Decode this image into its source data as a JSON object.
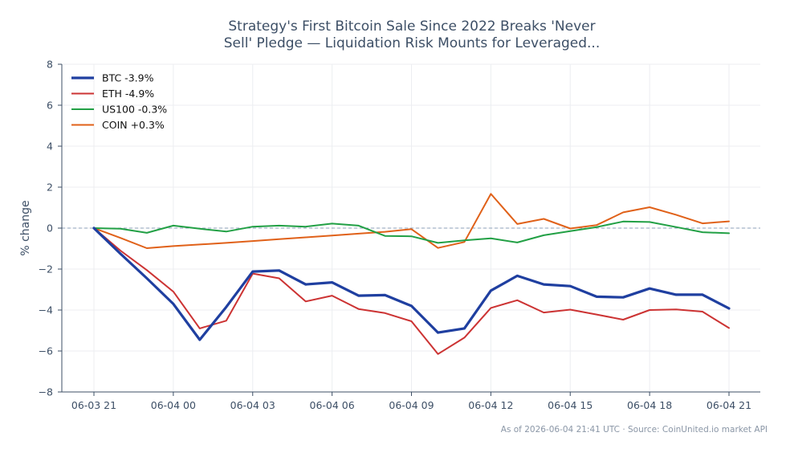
{
  "chart_data": {
    "type": "line",
    "title": "Strategy's First Bitcoin Sale Since 2022 Breaks 'Never Sell' Pledge — Liquidation Risk Mounts for Leveraged...",
    "title_lines": [
      "Strategy's First Bitcoin Sale Since 2022 Breaks 'Never",
      "Sell' Pledge — Liquidation Risk Mounts for Leveraged..."
    ],
    "xlabel": "",
    "ylabel": "% change",
    "ylim": [
      -8,
      8
    ],
    "yticks": [
      -8,
      -6,
      -4,
      -2,
      0,
      2,
      4,
      6,
      8
    ],
    "ytick_labels": [
      "−8",
      "−6",
      "−4",
      "−2",
      "0",
      "2",
      "4",
      "6",
      "8"
    ],
    "x": [
      "06-03 21",
      "06-03 22",
      "06-03 23",
      "06-04 00",
      "06-04 01",
      "06-04 02",
      "06-04 03",
      "06-04 04",
      "06-04 05",
      "06-04 06",
      "06-04 07",
      "06-04 08",
      "06-04 09",
      "06-04 10",
      "06-04 11",
      "06-04 12",
      "06-04 13",
      "06-04 14",
      "06-04 15",
      "06-04 16",
      "06-04 17",
      "06-04 18",
      "06-04 19",
      "06-04 20",
      "06-04 21"
    ],
    "xtick_labels": [
      "06-03 21",
      "06-04 00",
      "06-04 03",
      "06-04 06",
      "06-04 09",
      "06-04 12",
      "06-04 15",
      "06-04 18",
      "06-04 21"
    ],
    "grid": true,
    "legend_position": "top-left",
    "zero_line": true,
    "series": [
      {
        "name": "BTC -3.9%",
        "color": "#1f3fa0",
        "width": 3.2,
        "values": [
          0,
          -1.25,
          -2.45,
          -3.7,
          -5.45,
          -3.85,
          -2.12,
          -2.07,
          -2.75,
          -2.65,
          -3.3,
          -3.27,
          -3.8,
          -5.1,
          -4.9,
          -3.05,
          -2.33,
          -2.75,
          -2.83,
          -3.35,
          -3.38,
          -2.95,
          -3.25,
          -3.25,
          -3.92
        ]
      },
      {
        "name": "ETH -4.9%",
        "color": "#cc3333",
        "width": 2,
        "values": [
          0,
          -1.1,
          -2.05,
          -3.1,
          -4.9,
          -4.52,
          -2.22,
          -2.45,
          -3.58,
          -3.3,
          -3.95,
          -4.15,
          -4.55,
          -6.15,
          -5.35,
          -3.9,
          -3.52,
          -4.12,
          -3.98,
          -4.22,
          -4.47,
          -4.0,
          -3.97,
          -4.08,
          -4.88
        ]
      },
      {
        "name": "US100 -0.3%",
        "color": "#22a045",
        "width": 2,
        "values": [
          0,
          -0.03,
          -0.23,
          0.12,
          -0.03,
          -0.17,
          0.07,
          0.12,
          0.07,
          0.22,
          0.12,
          -0.38,
          -0.4,
          -0.72,
          -0.6,
          -0.5,
          -0.7,
          -0.35,
          -0.15,
          0.05,
          0.32,
          0.3,
          0.05,
          -0.2,
          -0.25
        ]
      },
      {
        "name": "COIN +0.3%",
        "color": "#e06119",
        "width": 2,
        "values": [
          0,
          -0.48,
          -0.98,
          -0.88,
          -0.8,
          -0.72,
          -0.63,
          -0.54,
          -0.45,
          -0.36,
          -0.27,
          -0.18,
          -0.05,
          -0.97,
          -0.68,
          1.67,
          0.2,
          0.45,
          -0.02,
          0.15,
          0.77,
          1.02,
          0.65,
          0.23,
          0.33
        ]
      }
    ],
    "footer": "As of 2026-06-04 21:41 UTC · Source: CoinUnited.io market API",
    "colors": {
      "text": "#3d4f66",
      "grid": "#eceef1",
      "axis": "#3d4f66",
      "zero_line": "#8ea2b8",
      "footer": "#8a96a6"
    }
  }
}
